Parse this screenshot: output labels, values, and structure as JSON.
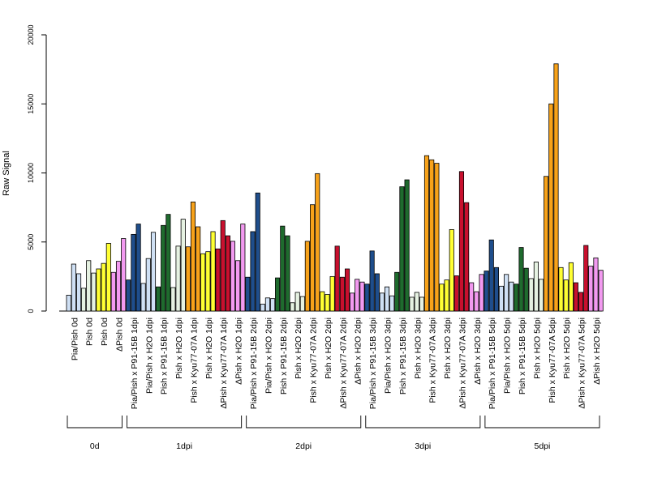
{
  "chart_data": {
    "type": "bar",
    "title": "",
    "xlabel": "",
    "ylabel": "Raw Signal",
    "ylim": [
      0,
      20000
    ],
    "yticks": [
      "0",
      "5000",
      "10000",
      "15000",
      "20000"
    ],
    "grid": false,
    "legend": "none",
    "colors": {
      "Pia/Pish": "#cfe0f4",
      "Pish": "#e6f2e2",
      "Pia/Pish x P91-15B": "#1f4e8c",
      "Pish x P91-15B": "#1f6b2e",
      "Pish x H2O": "#f3f7ef",
      "Pish x Kyu77-07A": "#f7a21a",
      "Pish x H2O yellow": "#ffff33",
      "ΔPish x Kyu77-07A": "#c8102e",
      "ΔPish": "#f29af0"
    },
    "categories": [
      "Pia/Pish 0d",
      "Pish 0d",
      "Pish 0d",
      "ΔPish 0d",
      "Pia/Pish x P91-15B 1dpi",
      "Pia/Pish x H2O 1dpi",
      "Pish x P91-15B 1dpi",
      "Pish x H2O 1dpi",
      "Pish x Kyu77-07A 1dpi",
      "Pish x H2O 1dpi",
      "ΔPish x Kyu77-07A 1dpi",
      "ΔPish x H2O 1dpi",
      "Pia/Pish x P91-15B 2dpi",
      "Pia/Pish x H2O 2dpi",
      "Pish x P91-15B 2dpi",
      "Pish x H2O 2dpi",
      "Pish x Kyu77-07A 2dpi",
      "Pish x H2O 2dpi",
      "ΔPish x Kyu77-07A 2dpi",
      "ΔPish x H2O 2dpi",
      "Pia/Pish x P91-15B 3dpi",
      "Pia/Pish x H2O 3dpi",
      "Pish x P91-15B 3dpi",
      "Pish x H2O 3dpi",
      "Pish x Kyu77-07A 3dpi",
      "Pish x H2O 3dpi",
      "ΔPish x Kyu77-07A 3dpi",
      "ΔPish x H2O 3dpi",
      "Pia/Pish x P91-15B 5dpi",
      "Pia/Pish x H2O 5dpi",
      "Pish x P91-15B 5dpi",
      "Pish x H2O 5dpi",
      "Pish x Kyu77-07A 5dpi",
      "Pish x H2O 5dpi",
      "ΔPish x Kyu77-07A 5dpi",
      "ΔPish x H2O 5dpi"
    ],
    "bar_colors": [
      "#cfe0f4",
      "#e6f2e2",
      "#ffff33",
      "#f29af0",
      "#1f4e8c",
      "#cfe0f4",
      "#1f6b2e",
      "#e6f2e2",
      "#f7a21a",
      "#ffff33",
      "#c8102e",
      "#f29af0",
      "#1f4e8c",
      "#cfe0f4",
      "#1f6b2e",
      "#e6f2e2",
      "#f7a21a",
      "#ffff33",
      "#c8102e",
      "#f29af0",
      "#1f4e8c",
      "#cfe0f4",
      "#1f6b2e",
      "#e6f2e2",
      "#f7a21a",
      "#ffff33",
      "#c8102e",
      "#f29af0",
      "#1f4e8c",
      "#cfe0f4",
      "#1f6b2e",
      "#e6f2e2",
      "#f7a21a",
      "#ffff33",
      "#c8102e",
      "#f29af0"
    ],
    "values": [
      [
        1150,
        3400,
        2700
      ],
      [
        1650,
        3650,
        2750
      ],
      [
        3050,
        3450,
        4900
      ],
      [
        2800,
        3600,
        5250
      ],
      [
        2250,
        5550,
        6300
      ],
      [
        2000,
        3800,
        5700
      ],
      [
        1750,
        6200,
        7000
      ],
      [
        1700,
        4700,
        6650
      ],
      [
        4650,
        7900,
        6100
      ],
      [
        4150,
        4300,
        5750
      ],
      [
        4500,
        6550,
        5450
      ],
      [
        5050,
        3650,
        6300
      ],
      [
        2450,
        5750,
        8550
      ],
      [
        500,
        950,
        900
      ],
      [
        2400,
        6150,
        5450
      ],
      [
        600,
        1350,
        1050
      ],
      [
        5050,
        7700,
        9950
      ],
      [
        1400,
        1200,
        2500
      ],
      [
        4700,
        2450,
        3050
      ],
      [
        1300,
        2300,
        2100
      ],
      [
        1950,
        4350,
        2700
      ],
      [
        1300,
        1750,
        1100
      ],
      [
        2800,
        9000,
        9500
      ],
      [
        1000,
        1350,
        1000
      ],
      [
        11250,
        10950,
        10700
      ],
      [
        1950,
        2250,
        5900
      ],
      [
        2550,
        10100,
        7850
      ],
      [
        2050,
        1400,
        2650
      ],
      [
        2900,
        5150,
        3150
      ],
      [
        1800,
        2650,
        2100
      ],
      [
        1950,
        4600,
        3100
      ],
      [
        2350,
        3550,
        2300
      ],
      [
        9750,
        15000,
        17900
      ],
      [
        3150,
        2250,
        3500
      ],
      [
        2050,
        1350,
        4750
      ],
      [
        3250,
        3850,
        2950
      ]
    ],
    "groups": [
      {
        "label": "0d",
        "start": 0,
        "end": 3
      },
      {
        "label": "1dpi",
        "start": 4,
        "end": 11
      },
      {
        "label": "2dpi",
        "start": 12,
        "end": 19
      },
      {
        "label": "3dpi",
        "start": 20,
        "end": 27
      },
      {
        "label": "5dpi",
        "start": 28,
        "end": 35
      }
    ]
  }
}
